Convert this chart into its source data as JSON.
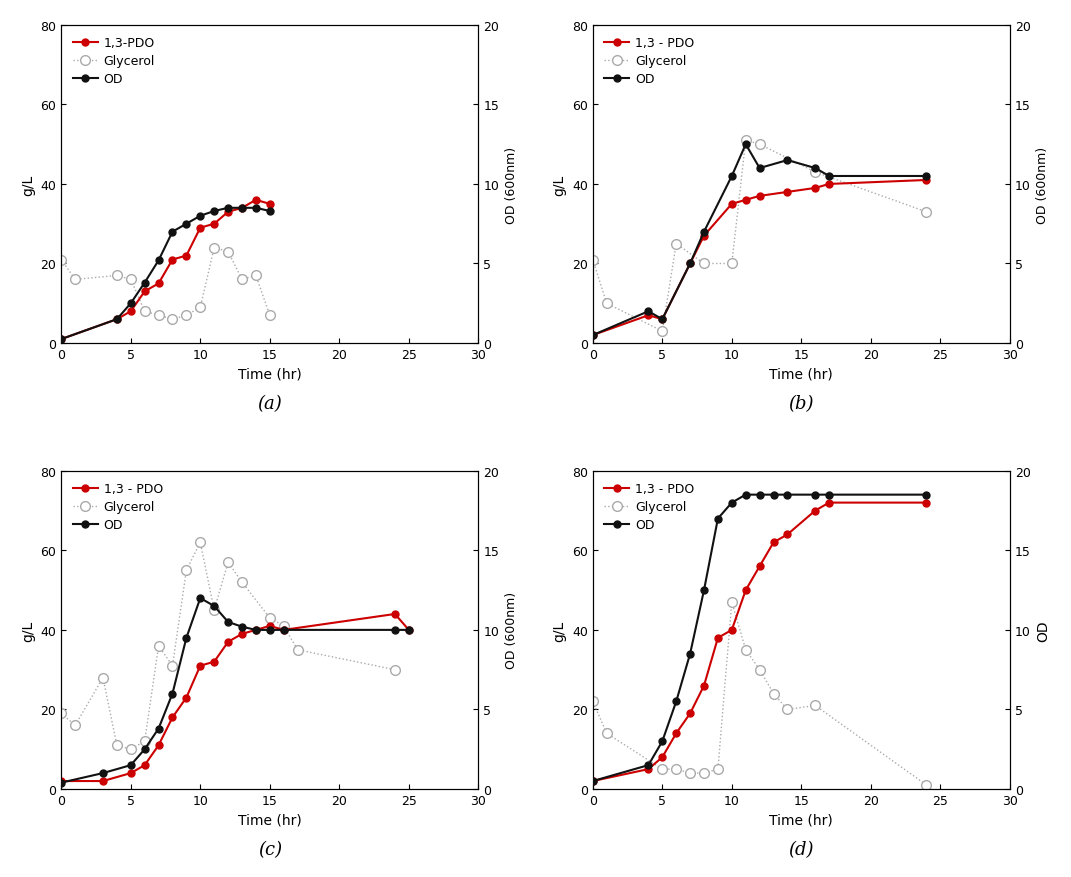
{
  "panels": [
    {
      "label": "(a)",
      "pdo_time": [
        0,
        4,
        5,
        6,
        7,
        8,
        9,
        10,
        11,
        12,
        13,
        14,
        15
      ],
      "pdo_values": [
        1,
        6,
        8,
        13,
        15,
        21,
        22,
        29,
        30,
        33,
        34,
        36,
        35
      ],
      "glycerol_time": [
        0,
        1,
        4,
        5,
        6,
        7,
        8,
        9,
        10,
        11,
        12,
        13,
        14,
        15
      ],
      "glycerol_values": [
        21,
        16,
        17,
        16,
        8,
        7,
        6,
        7,
        9,
        24,
        23,
        16,
        17,
        7
      ],
      "od_time": [
        0,
        4,
        5,
        6,
        7,
        8,
        9,
        10,
        11,
        12,
        13,
        14,
        15
      ],
      "od_values": [
        0.25,
        1.5,
        2.5,
        3.8,
        5.2,
        7.0,
        7.5,
        8.0,
        8.3,
        8.5,
        8.5,
        8.5,
        8.3
      ],
      "xlim": [
        0,
        30
      ],
      "ylim_left": [
        0,
        80
      ],
      "ylim_right": [
        0,
        20
      ]
    },
    {
      "label": "(b)",
      "pdo_time": [
        0,
        4,
        5,
        7,
        8,
        10,
        11,
        12,
        14,
        16,
        17,
        24
      ],
      "pdo_values": [
        2,
        7,
        6,
        20,
        27,
        35,
        36,
        37,
        38,
        39,
        40,
        41
      ],
      "glycerol_time": [
        0,
        1,
        5,
        6,
        8,
        10,
        11,
        12,
        16,
        24
      ],
      "glycerol_values": [
        21,
        10,
        3,
        25,
        20,
        20,
        51,
        50,
        43,
        33
      ],
      "od_time": [
        0,
        4,
        5,
        7,
        8,
        10,
        11,
        12,
        14,
        16,
        17,
        24
      ],
      "od_values": [
        0.5,
        2.0,
        1.5,
        5.0,
        7.0,
        10.5,
        12.5,
        11.0,
        11.5,
        11.0,
        10.5,
        10.5
      ],
      "xlim": [
        0,
        30
      ],
      "ylim_left": [
        0,
        80
      ],
      "ylim_right": [
        0,
        20
      ]
    },
    {
      "label": "(c)",
      "pdo_time": [
        0,
        3,
        5,
        6,
        7,
        8,
        9,
        10,
        11,
        12,
        13,
        14,
        15,
        16,
        24,
        25
      ],
      "pdo_values": [
        2,
        2,
        4,
        6,
        11,
        18,
        23,
        31,
        32,
        37,
        39,
        40,
        41,
        40,
        44,
        40
      ],
      "glycerol_time": [
        0,
        1,
        3,
        4,
        5,
        6,
        7,
        8,
        9,
        10,
        11,
        12,
        13,
        15,
        16,
        17,
        24
      ],
      "glycerol_values": [
        19,
        16,
        28,
        11,
        10,
        12,
        36,
        31,
        55,
        62,
        45,
        57,
        52,
        43,
        41,
        35,
        30
      ],
      "od_time": [
        0,
        3,
        5,
        6,
        7,
        8,
        9,
        10,
        11,
        12,
        13,
        14,
        15,
        16,
        24,
        25
      ],
      "od_values": [
        0.4,
        1.0,
        1.5,
        2.5,
        3.8,
        6.0,
        9.5,
        12.0,
        11.5,
        10.5,
        10.2,
        10.0,
        10.0,
        10.0,
        10.0,
        10.0
      ],
      "xlim": [
        0,
        30
      ],
      "ylim_left": [
        0,
        80
      ],
      "ylim_right": [
        0,
        20
      ]
    },
    {
      "label": "(d)",
      "pdo_time": [
        0,
        4,
        5,
        6,
        7,
        8,
        9,
        10,
        11,
        12,
        13,
        14,
        16,
        17,
        24
      ],
      "pdo_values": [
        2,
        5,
        8,
        14,
        19,
        26,
        38,
        40,
        50,
        56,
        62,
        64,
        70,
        72,
        72
      ],
      "glycerol_time": [
        0,
        1,
        5,
        6,
        7,
        8,
        9,
        10,
        11,
        12,
        13,
        14,
        16,
        24
      ],
      "glycerol_values": [
        22,
        14,
        5,
        5,
        4,
        4,
        5,
        47,
        35,
        30,
        24,
        20,
        21,
        1
      ],
      "od_time": [
        0,
        4,
        5,
        6,
        7,
        8,
        9,
        10,
        11,
        12,
        13,
        14,
        16,
        17,
        24
      ],
      "od_values": [
        0.5,
        1.5,
        3.0,
        5.5,
        8.5,
        12.5,
        17.0,
        18.0,
        18.5,
        18.5,
        18.5,
        18.5,
        18.5,
        18.5,
        18.5
      ],
      "xlim": [
        0,
        30
      ],
      "ylim_left": [
        0,
        80
      ],
      "ylim_right": [
        0,
        20
      ]
    }
  ],
  "pdo_color": "#cc0000",
  "od_color": "#111111",
  "glycerol_color": "#aaaaaa",
  "pdo_label_a": "1,3-PDO",
  "pdo_label_bcd": "1,3 - PDO",
  "glycerol_label": "Glycerol",
  "od_label": "OD",
  "xlabel": "Time (hr)",
  "ylabel_left": "g/L",
  "ylabel_right_od": "OD (600nm)",
  "ylabel_right_od_d": "OD",
  "xticks": [
    0,
    5,
    10,
    15,
    20,
    25,
    30
  ],
  "yticks_left": [
    0,
    20,
    40,
    60,
    80
  ],
  "yticks_right": [
    0,
    5,
    10,
    15,
    20
  ]
}
